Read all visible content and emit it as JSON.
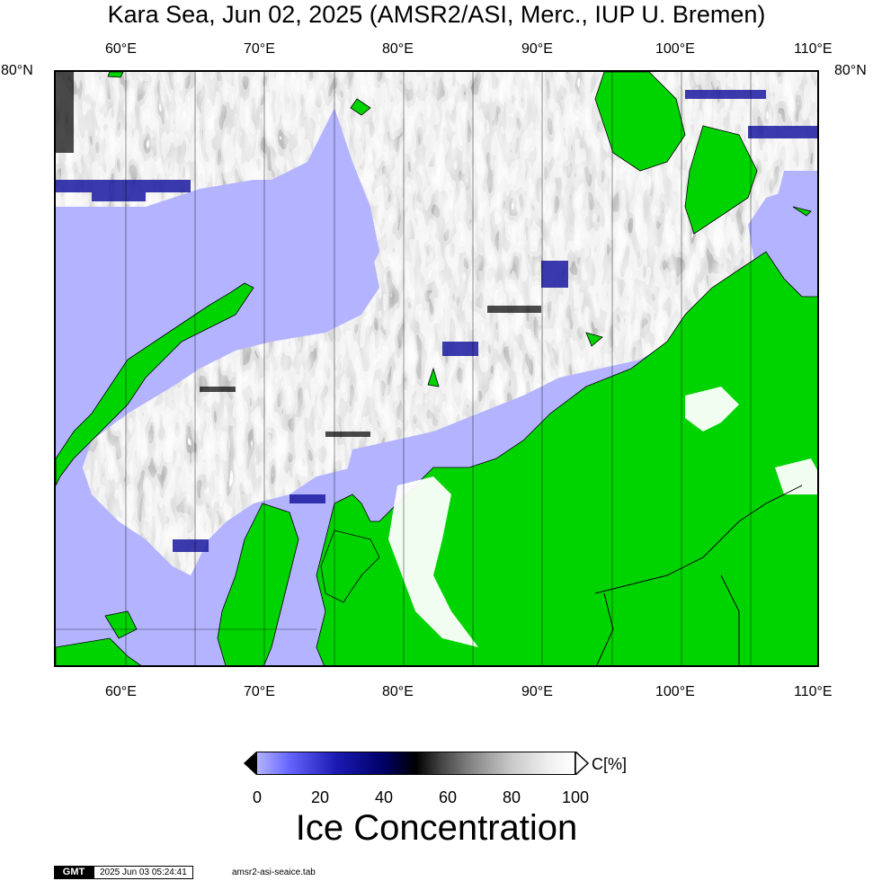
{
  "title": "Kara Sea, Jun 02, 2025 (AMSR2/ASI, Merc., IUP U. Bremen)",
  "lon_labels": [
    "60°E",
    "70°E",
    "80°E",
    "90°E",
    "100°E",
    "110°E"
  ],
  "lat_label": "80°N",
  "colorbar": {
    "ticks": [
      "0",
      "20",
      "40",
      "60",
      "80",
      "100"
    ],
    "unit": "C[%]",
    "title": "Ice Concentration"
  },
  "footer": {
    "logo": "GMT",
    "timestamp": "2025 Jun 03 05:24:41",
    "file": "amsr2-asi-seaice.tab"
  },
  "colors": {
    "open_water": "#b3b3ff",
    "land": "#00d400",
    "ice_full": "#ffffff",
    "ice_mid": "#000000",
    "ice_low": "#00007f"
  }
}
